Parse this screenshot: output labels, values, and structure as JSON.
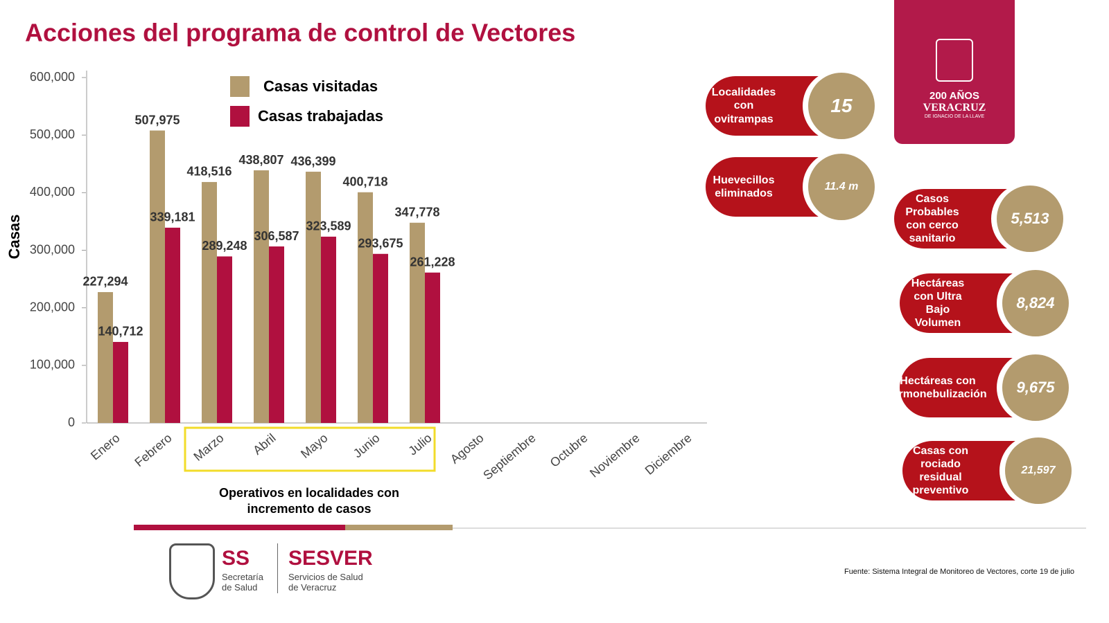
{
  "chart_data": {
    "type": "bar",
    "title": "Acciones del programa de control de Vectores",
    "y_label": "Casas",
    "x_annotation": "Operativos en localidades con incremento de casos",
    "categories": [
      "Enero",
      "Febrero",
      "Marzo",
      "Abril",
      "Mayo",
      "Junio",
      "Julio",
      "Agosto",
      "Septiembre",
      "Octubre",
      "Noviembre",
      "Diciembre"
    ],
    "series": [
      {
        "name": "Casas visitadas",
        "color": "#b39b6e",
        "values": [
          227294,
          507975,
          418516,
          438807,
          436399,
          400718,
          347778,
          null,
          null,
          null,
          null,
          null
        ],
        "value_labels": [
          "227,294",
          "507,975",
          "418,516",
          "438,807",
          "436,399",
          "400,718",
          "347,778",
          null,
          null,
          null,
          null,
          null
        ]
      },
      {
        "name": "Casas trabajadas",
        "color": "#b0103f",
        "values": [
          140712,
          339181,
          289248,
          306587,
          323589,
          293675,
          261228,
          null,
          null,
          null,
          null,
          null
        ],
        "value_labels": [
          "140,712",
          "339,181",
          "289,248",
          "306,587",
          "323,589",
          "293,675",
          "261,228",
          null,
          null,
          null,
          null,
          null
        ]
      }
    ],
    "ylim": [
      0,
      600000
    ],
    "yticks": [
      0,
      {
        "value": 100000,
        "label": "100,000"
      },
      {
        "value": 200000,
        "label": "200,000"
      },
      {
        "value": 300000,
        "label": "300,000"
      },
      {
        "value": 400000,
        "label": "400,000"
      },
      {
        "value": 500000,
        "label": "500,000"
      },
      {
        "value": 600000,
        "label": "600,000"
      }
    ],
    "grid": false
  },
  "stats": [
    {
      "label": "Localidades con ovitrampas",
      "value": "15"
    },
    {
      "label": "Huevecillos eliminados",
      "value": "11.4 m"
    },
    {
      "label": "Casos Probables con cerco sanitario",
      "value": "5,513"
    },
    {
      "label": "Hectáreas con Ultra Bajo Volumen",
      "value": "8,824"
    },
    {
      "label": "Hectáreas con termonebulización",
      "value": "9,675"
    },
    {
      "label": "Casas con rociado residual preventivo",
      "value": "21,597"
    }
  ],
  "logo": {
    "years": "200 AÑOS",
    "state": "VERACRUZ",
    "subtitle": "DE IGNACIO DE LA LLAVE"
  },
  "footer": {
    "ss": "SS",
    "ss_name": "Secretaría de Salud",
    "sesver": "SESVER",
    "sesver_name": "Servicios de Salud de Veracruz",
    "source": "Fuente: Sistema Integral de Monitoreo de Vectores, corte 19 de julio"
  }
}
